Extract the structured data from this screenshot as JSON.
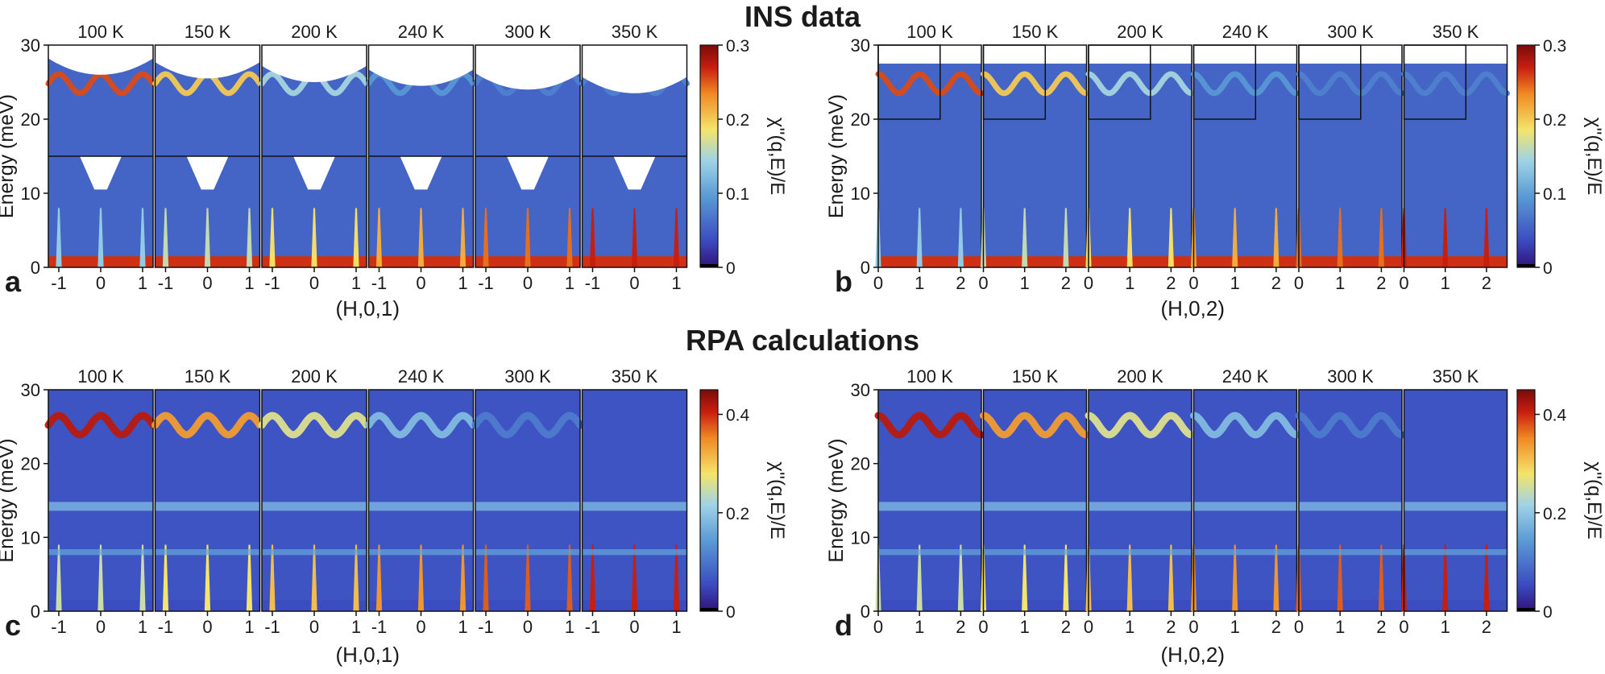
{
  "figure": {
    "top_title": "INS data",
    "bottom_title": "RPA calculations"
  },
  "chart_data": [
    {
      "type": "heatmap",
      "panel_label": "a",
      "title": "INS data",
      "xlabel": "(H,0,1)",
      "ylabel": "Energy (meV)",
      "temperatures": [
        "100 K",
        "150 K",
        "200 K",
        "240 K",
        "300 K",
        "350 K"
      ],
      "xlim": [
        -1.25,
        1.25
      ],
      "xticks": [
        -1,
        0,
        1
      ],
      "ylim": [
        0,
        30
      ],
      "yticks": [
        0,
        10,
        20,
        30
      ],
      "colorbar": {
        "label": "χ''(q,E)/E",
        "range": [
          0,
          0.3
        ],
        "ticks": [
          0,
          0.1,
          0.2,
          0.3
        ]
      }
    },
    {
      "type": "heatmap",
      "panel_label": "b",
      "title": "INS data",
      "xlabel": "(H,0,2)",
      "ylabel": "Energy (meV)",
      "temperatures": [
        "100 K",
        "150 K",
        "200 K",
        "240 K",
        "300 K",
        "350 K"
      ],
      "xlim": [
        0,
        2.5
      ],
      "xticks": [
        0,
        1,
        2
      ],
      "ylim": [
        0,
        30
      ],
      "yticks": [
        0,
        10,
        20,
        30
      ],
      "colorbar": {
        "label": "χ''(q,E)/E",
        "range": [
          0,
          0.3
        ],
        "ticks": [
          0,
          0.1,
          0.2,
          0.3
        ]
      }
    },
    {
      "type": "heatmap",
      "panel_label": "c",
      "title": "RPA calculations",
      "xlabel": "(H,0,1)",
      "ylabel": "Energy (meV)",
      "temperatures": [
        "100 K",
        "150 K",
        "200 K",
        "240 K",
        "300 K",
        "350 K"
      ],
      "xlim": [
        -1.25,
        1.25
      ],
      "xticks": [
        -1,
        0,
        1
      ],
      "ylim": [
        0,
        30
      ],
      "yticks": [
        0,
        10,
        20,
        30
      ],
      "colorbar": {
        "label": "χ''(q,E)/E",
        "range": [
          0,
          0.45
        ],
        "ticks": [
          0,
          0.2,
          0.4
        ]
      }
    },
    {
      "type": "heatmap",
      "panel_label": "d",
      "title": "RPA calculations",
      "xlabel": "(H,0,2)",
      "ylabel": "Energy (meV)",
      "temperatures": [
        "100 K",
        "150 K",
        "200 K",
        "240 K",
        "300 K",
        "350 K"
      ],
      "xlim": [
        0,
        2.5
      ],
      "xticks": [
        0,
        1,
        2
      ],
      "ylim": [
        0,
        30
      ],
      "yticks": [
        0,
        10,
        20,
        30
      ],
      "colorbar": {
        "label": "χ''(q,E)/E",
        "range": [
          0,
          0.45
        ],
        "ticks": [
          0,
          0.2,
          0.4
        ]
      }
    }
  ]
}
